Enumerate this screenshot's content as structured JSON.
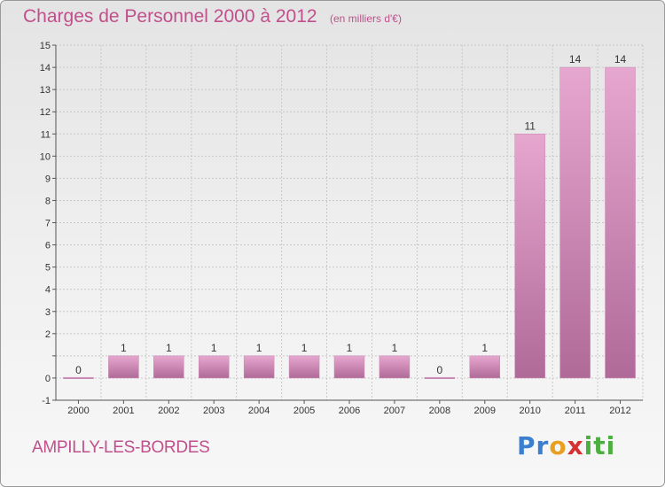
{
  "header": {
    "title": "Charges de Personnel 2000 à 2012",
    "subtitle": "(en milliers d'€)"
  },
  "footer": {
    "commune": "AMPILLY-LES-BORDES",
    "brand_letters": [
      {
        "ch": "P",
        "color": "#3a7fd0"
      },
      {
        "ch": "r",
        "color": "#3a7fd0"
      },
      {
        "ch": "o",
        "color": "#e8a020"
      },
      {
        "ch": "x",
        "color": "#d83030"
      },
      {
        "ch": "i",
        "color": "#4caf40"
      },
      {
        "ch": "t",
        "color": "#4caf40"
      },
      {
        "ch": "i",
        "color": "#4caf40"
      }
    ]
  },
  "chart_data": {
    "type": "bar",
    "categories": [
      "2000",
      "2001",
      "2002",
      "2003",
      "2004",
      "2005",
      "2006",
      "2007",
      "2008",
      "2009",
      "2010",
      "2011",
      "2012"
    ],
    "values": [
      0,
      1,
      1,
      1,
      1,
      1,
      1,
      1,
      0,
      1,
      11,
      14,
      14
    ],
    "data_labels": [
      "0",
      "1",
      "1",
      "1",
      "1",
      "1",
      "1",
      "1",
      "0",
      "1",
      "11",
      "14",
      "14"
    ],
    "ylim": [
      -1,
      15
    ],
    "yticks": [
      -1,
      0,
      1,
      2,
      3,
      4,
      5,
      6,
      7,
      8,
      9,
      10,
      11,
      12,
      13,
      14,
      15
    ],
    "ytick_labels": [
      "-1",
      "0",
      "",
      "2",
      "3",
      "4",
      "5",
      "6",
      "7",
      "8",
      "9",
      "10",
      "11",
      "12",
      "13",
      "14",
      "15"
    ],
    "grid": true,
    "colors": {
      "bar_light": "#e6a7cf",
      "bar_dark": "#b06a98",
      "grid": "#c8c8c8",
      "axis": "#555555"
    }
  }
}
